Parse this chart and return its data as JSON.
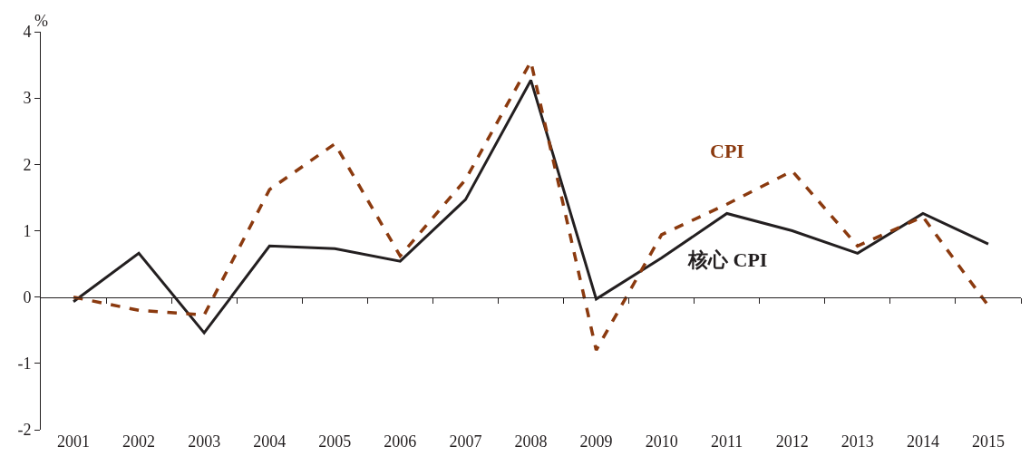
{
  "chart_data": {
    "type": "line",
    "ylabel": "%",
    "categories": [
      "2001",
      "2002",
      "2003",
      "2004",
      "2005",
      "2006",
      "2007",
      "2008",
      "2009",
      "2010",
      "2011",
      "2012",
      "2013",
      "2014",
      "2015"
    ],
    "series": [
      {
        "name": "核心 CPI",
        "color": "#231f20",
        "line_style": "solid",
        "values": [
          -0.07,
          0.66,
          -0.54,
          0.77,
          0.73,
          0.54,
          1.47,
          3.27,
          -0.03,
          0.59,
          1.26,
          1.0,
          0.66,
          1.26,
          0.8
        ]
      },
      {
        "name": "CPI",
        "color": "#8b3a0f",
        "line_style": "dashed",
        "values": [
          0.0,
          -0.2,
          -0.27,
          1.62,
          2.31,
          0.62,
          1.77,
          3.55,
          -0.8,
          0.94,
          1.4,
          1.9,
          0.77,
          1.21,
          -0.13
        ]
      }
    ],
    "ylim": [
      -2,
      4
    ],
    "yticks": [
      -2,
      -1,
      0,
      1,
      2,
      3,
      4
    ],
    "legend": false,
    "marker": "none"
  }
}
